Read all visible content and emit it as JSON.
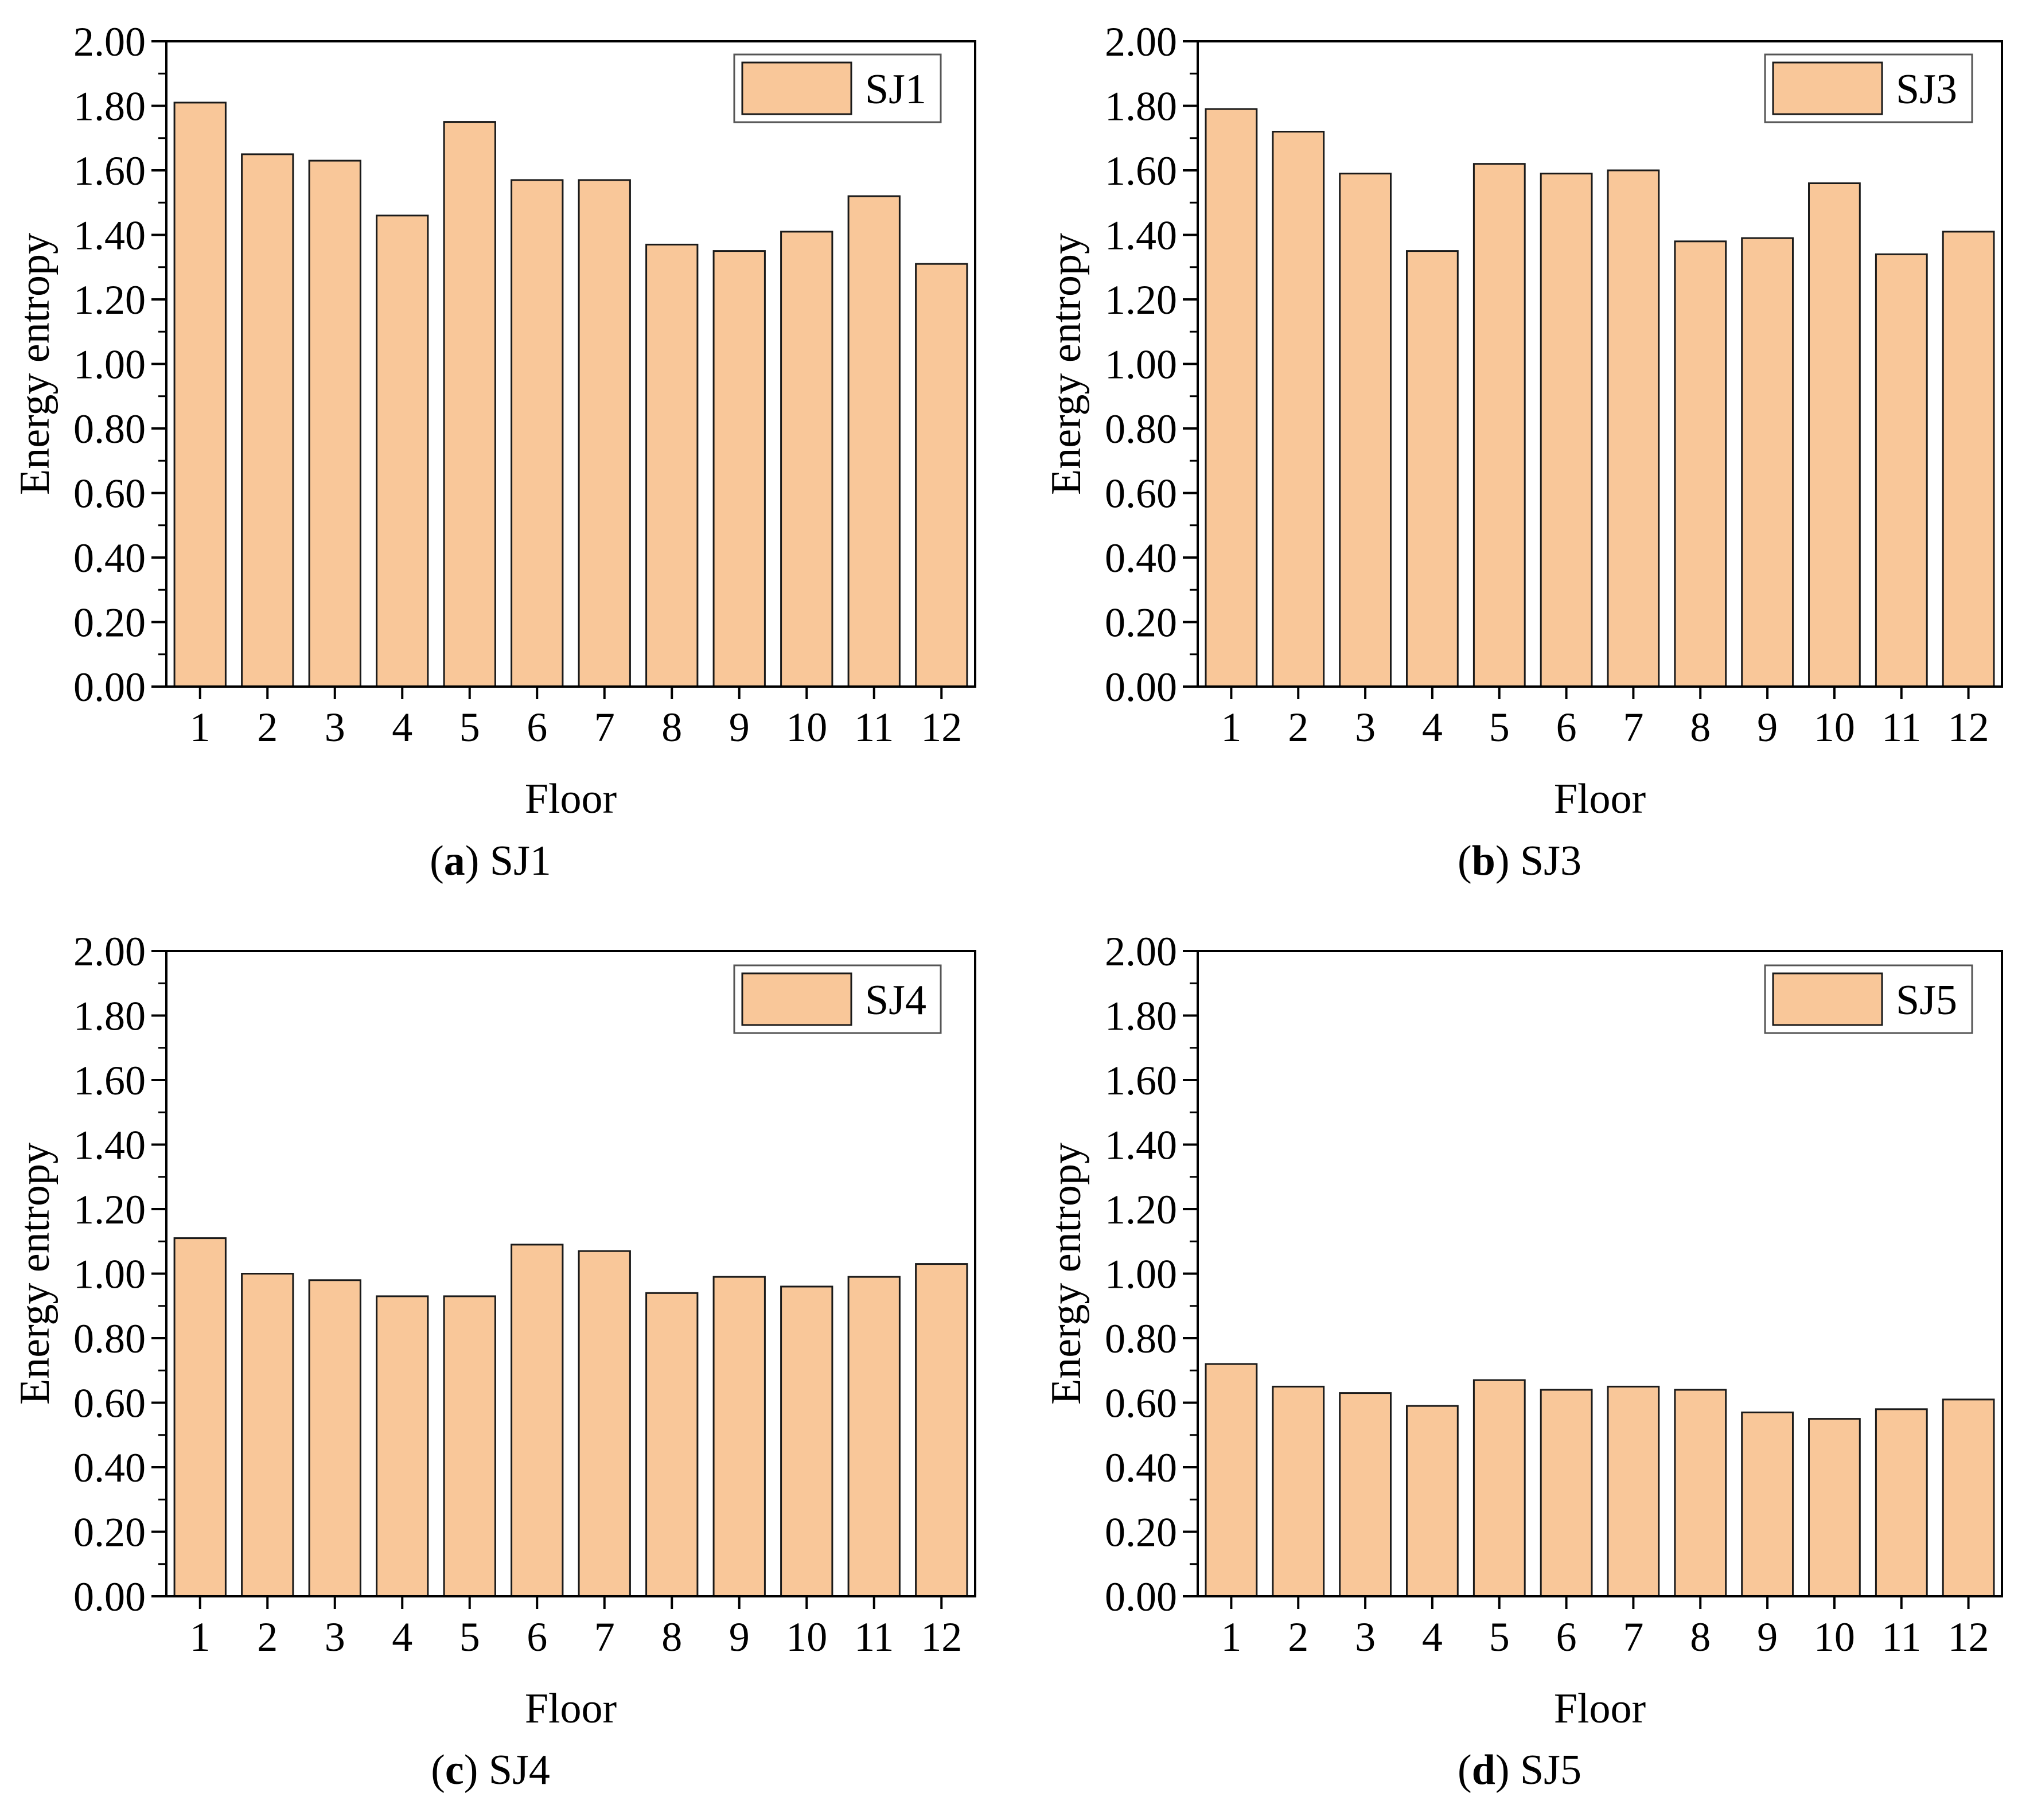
{
  "colors": {
    "bar_fill": "#F9C799",
    "bar_stroke": "#1a1a1a",
    "axis": "#000000"
  },
  "chart_data": [
    {
      "id": "a",
      "type": "bar",
      "series_name": "SJ1",
      "legend_label": "SJ1",
      "caption_letter": "a",
      "caption_text": "SJ1",
      "caption_open": "(",
      "caption_close": ") ",
      "xlabel": "Floor",
      "ylabel": "Energy entropy",
      "ylim": [
        0,
        2
      ],
      "categories": [
        "1",
        "2",
        "3",
        "4",
        "5",
        "6",
        "7",
        "8",
        "9",
        "10",
        "11",
        "12"
      ],
      "values": [
        1.81,
        1.65,
        1.63,
        1.46,
        1.75,
        1.57,
        1.57,
        1.37,
        1.35,
        1.41,
        1.52,
        1.31
      ],
      "yticks": [
        "0.00",
        "0.20",
        "0.40",
        "0.60",
        "0.80",
        "1.00",
        "1.20",
        "1.40",
        "1.60",
        "1.80",
        "2.00"
      ],
      "legend_position": "top-right"
    },
    {
      "id": "b",
      "type": "bar",
      "series_name": "SJ3",
      "legend_label": "SJ3",
      "caption_letter": "b",
      "caption_text": "SJ3",
      "caption_open": "(",
      "caption_close": ") ",
      "xlabel": "Floor",
      "ylabel": "Energy entropy",
      "ylim": [
        0,
        2
      ],
      "categories": [
        "1",
        "2",
        "3",
        "4",
        "5",
        "6",
        "7",
        "8",
        "9",
        "10",
        "11",
        "12"
      ],
      "values": [
        1.79,
        1.72,
        1.59,
        1.35,
        1.62,
        1.59,
        1.6,
        1.38,
        1.39,
        1.56,
        1.34,
        1.41
      ],
      "yticks": [
        "0.00",
        "0.20",
        "0.40",
        "0.60",
        "0.80",
        "1.00",
        "1.20",
        "1.40",
        "1.60",
        "1.80",
        "2.00"
      ],
      "legend_position": "top-right"
    },
    {
      "id": "c",
      "type": "bar",
      "series_name": "SJ4",
      "legend_label": "SJ4",
      "caption_letter": "c",
      "caption_text": "SJ4",
      "caption_open": "(",
      "caption_close": ") ",
      "xlabel": "Floor",
      "ylabel": "Energy entropy",
      "ylim": [
        0,
        2
      ],
      "categories": [
        "1",
        "2",
        "3",
        "4",
        "5",
        "6",
        "7",
        "8",
        "9",
        "10",
        "11",
        "12"
      ],
      "values": [
        1.11,
        1.0,
        0.98,
        0.93,
        0.93,
        1.09,
        1.07,
        0.94,
        0.99,
        0.96,
        0.99,
        1.03
      ],
      "yticks": [
        "0.00",
        "0.20",
        "0.40",
        "0.60",
        "0.80",
        "1.00",
        "1.20",
        "1.40",
        "1.60",
        "1.80",
        "2.00"
      ],
      "legend_position": "top-right"
    },
    {
      "id": "d",
      "type": "bar",
      "series_name": "SJ5",
      "legend_label": "SJ5",
      "caption_letter": "d",
      "caption_text": "SJ5",
      "caption_open": "(",
      "caption_close": ") ",
      "xlabel": "Floor",
      "ylabel": "Energy entropy",
      "ylim": [
        0,
        2
      ],
      "categories": [
        "1",
        "2",
        "3",
        "4",
        "5",
        "6",
        "7",
        "8",
        "9",
        "10",
        "11",
        "12"
      ],
      "values": [
        0.72,
        0.65,
        0.63,
        0.59,
        0.67,
        0.64,
        0.65,
        0.64,
        0.57,
        0.55,
        0.58,
        0.61
      ],
      "yticks": [
        "0.00",
        "0.20",
        "0.40",
        "0.60",
        "0.80",
        "1.00",
        "1.20",
        "1.40",
        "1.60",
        "1.80",
        "2.00"
      ],
      "legend_position": "top-right"
    }
  ]
}
